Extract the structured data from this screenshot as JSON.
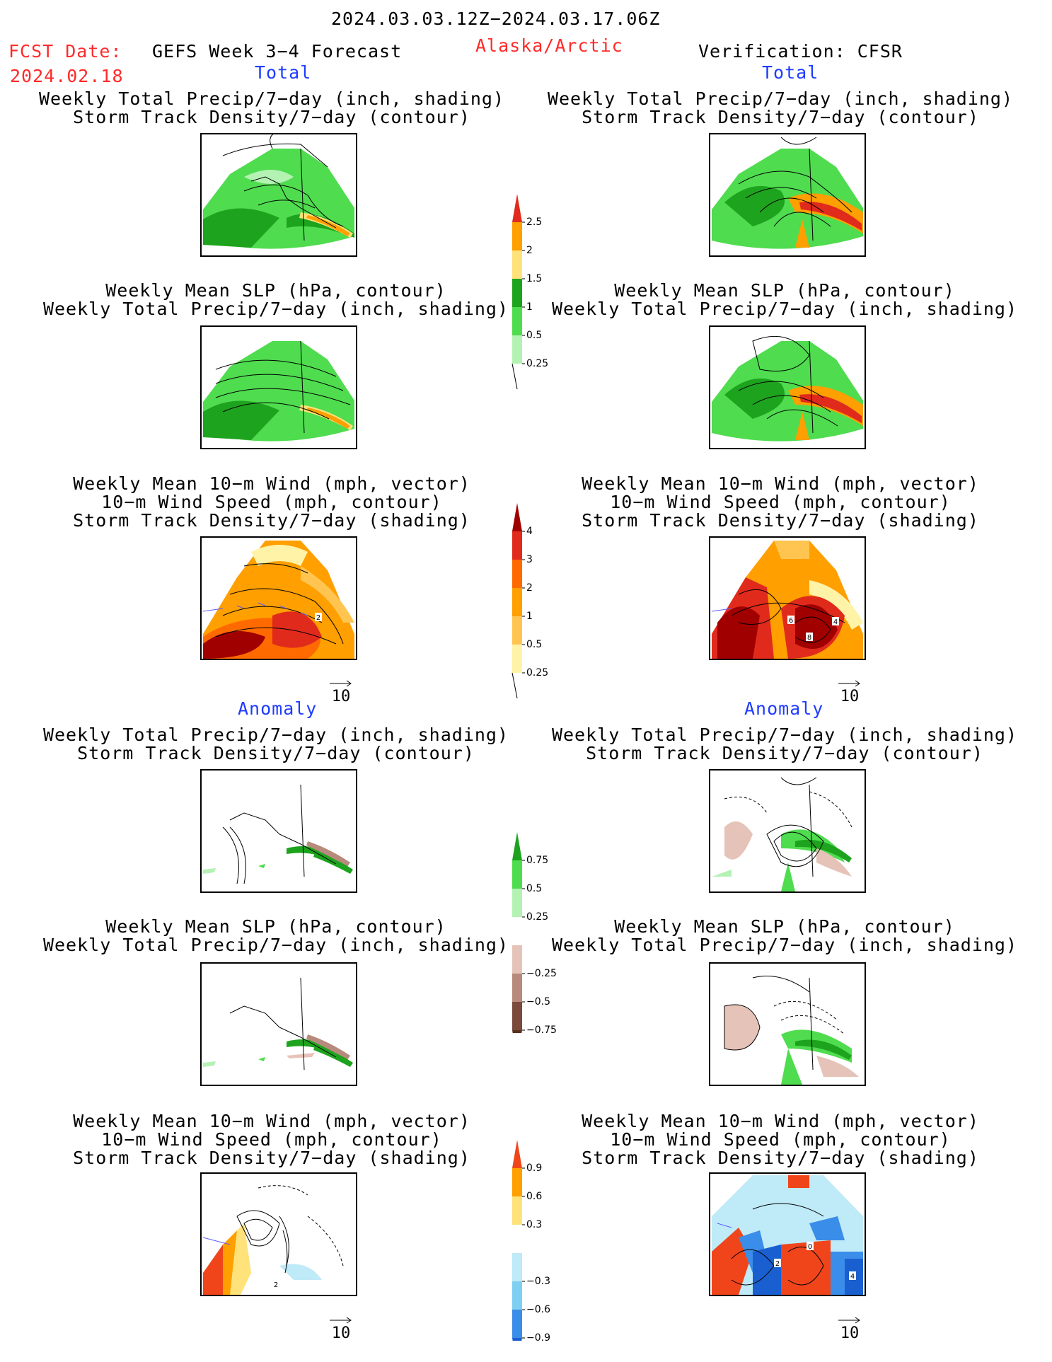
{
  "header": {
    "date_range": "2024.03.03.12Z−2024.03.17.06Z",
    "fcst_label": "FCST Date:",
    "fcst_date": "2024.02.18",
    "product": "GEFS Week 3−4 Forecast",
    "region": "Alaska/Arctic",
    "verification": "Verification: CFSR"
  },
  "sections": {
    "total": "Total",
    "anomaly": "Anomaly"
  },
  "titles": {
    "precip_storm": [
      "Weekly Total Precip/7−day (inch, shading)",
      "Storm Track Density/7−day (contour)"
    ],
    "slp_precip": [
      "Weekly Mean SLP (hPa, contour)",
      "Weekly Total Precip/7−day (inch, shading)"
    ],
    "wind_storm": [
      "Weekly Mean 10−m Wind (mph, vector)",
      "10−m Wind Speed (mph, contour)",
      "Storm Track Density/7−day (shading)"
    ]
  },
  "vector_ref": "10",
  "panel_labels": {
    "fcst_wind_total": [
      "2"
    ],
    "obs_wind_total": [
      "6",
      "4",
      "8"
    ],
    "fcst_wind_anom": [
      "2"
    ],
    "obs_wind_anom": [
      "0",
      "2",
      "4"
    ]
  },
  "colorbars": {
    "precip_total": {
      "labels": [
        "2.5",
        "2",
        "1.5",
        "1",
        "0.5",
        "0.25"
      ],
      "colors": [
        "#e02a1c",
        "#ff9f00",
        "#ffe27a",
        "#1ea31e",
        "#4fdc4f",
        "#b4f2b4"
      ]
    },
    "storm_total": {
      "labels": [
        "4",
        "3",
        "2",
        "1",
        "0.5",
        "0.25"
      ],
      "colors": [
        "#a00000",
        "#e02a1c",
        "#ff6a00",
        "#ff9f00",
        "#ffc550",
        "#fff3a8"
      ]
    },
    "precip_anom": {
      "labels": [
        "0.75",
        "0.5",
        "0.25",
        "−0.25",
        "−0.5",
        "−0.75"
      ],
      "colors": [
        "#1ea31e",
        "#4fdc4f",
        "#b4f2b4",
        "#ffffff",
        "#e6c3b8",
        "#b88a7c",
        "#7a4a3a",
        "#5a3020"
      ]
    },
    "storm_anom": {
      "labels": [
        "0.9",
        "0.6",
        "0.3",
        "−0.3",
        "−0.6",
        "−0.9"
      ],
      "colors": [
        "#f0451b",
        "#ff9f00",
        "#ffe27a",
        "#ffffff",
        "#bfeaf8",
        "#7fcff2",
        "#3a8de8",
        "#1a5fd0"
      ]
    }
  }
}
